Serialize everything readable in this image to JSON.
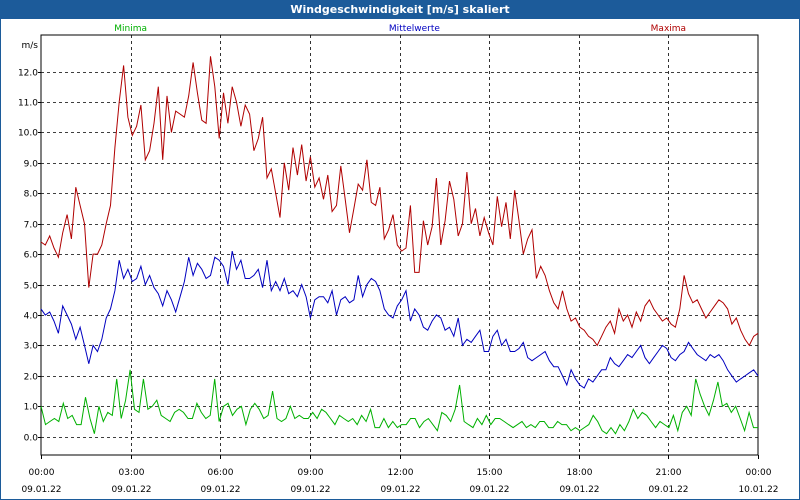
{
  "window": {
    "title": "Windgeschwindigkeit [m/s] skaliert"
  },
  "chart_data": {
    "type": "line",
    "title": "Windgeschwindigkeit [m/s] skaliert",
    "ylabel": "m/s",
    "ylim": [
      -0.6,
      13.2
    ],
    "xlim": [
      0,
      24
    ],
    "grid": true,
    "yticks": [
      "0.0",
      "1.0",
      "2.0",
      "3.0",
      "4.0",
      "5.0",
      "6.0",
      "7.0",
      "8.0",
      "9.0",
      "10.0",
      "11.0",
      "12.0"
    ],
    "xticks": [
      {
        "time": "00:00",
        "date": "09.01.22"
      },
      {
        "time": "03:00",
        "date": "09.01.22"
      },
      {
        "time": "06:00",
        "date": "09.01.22"
      },
      {
        "time": "09:00",
        "date": "09.01.22"
      },
      {
        "time": "12:00",
        "date": "09.01.22"
      },
      {
        "time": "15:00",
        "date": "09.01.22"
      },
      {
        "time": "18:00",
        "date": "09.01.22"
      },
      {
        "time": "21:00",
        "date": "09.01.22"
      },
      {
        "time": "00:00",
        "date": "10.01.22"
      }
    ],
    "x_unit": "hours since 09.01.22 00:00",
    "series": [
      {
        "name": "Minima",
        "color": "#00b000",
        "values": [
          1.0,
          0.4,
          0.5,
          0.6,
          0.5,
          1.1,
          0.6,
          0.7,
          0.4,
          0.4,
          1.3,
          0.6,
          0.1,
          1.0,
          0.5,
          0.8,
          0.7,
          1.9,
          0.6,
          1.2,
          2.2,
          0.9,
          0.8,
          1.9,
          0.9,
          1.0,
          1.2,
          0.7,
          0.6,
          0.5,
          0.8,
          0.9,
          0.8,
          0.6,
          0.6,
          1.1,
          0.8,
          0.6,
          0.7,
          1.9,
          0.5,
          1.0,
          1.1,
          0.7,
          0.9,
          1.0,
          0.4,
          0.9,
          1.1,
          0.9,
          0.6,
          0.7,
          1.5,
          0.6,
          0.5,
          0.6,
          1.0,
          0.6,
          0.7,
          0.6,
          0.6,
          0.8,
          0.6,
          0.9,
          0.8,
          0.6,
          0.4,
          0.7,
          0.6,
          0.5,
          0.6,
          0.4,
          0.7,
          0.5,
          0.9,
          0.3,
          0.3,
          0.6,
          0.3,
          0.5,
          0.3,
          0.4,
          0.4,
          0.6,
          0.6,
          0.3,
          0.5,
          0.6,
          0.4,
          0.2,
          0.8,
          0.7,
          0.5,
          0.9,
          1.7,
          0.5,
          0.4,
          0.3,
          0.6,
          0.4,
          0.7,
          0.4,
          0.6,
          0.6,
          0.5,
          0.4,
          0.3,
          0.4,
          0.5,
          0.3,
          0.4,
          0.3,
          0.5,
          0.5,
          0.3,
          0.3,
          0.5,
          0.4,
          0.4,
          0.2,
          0.3,
          0.2,
          0.3,
          0.4,
          0.7,
          0.5,
          0.2,
          0.1,
          0.3,
          0.1,
          0.4,
          0.2,
          0.5,
          0.9,
          0.6,
          0.8,
          0.7,
          0.5,
          0.3,
          0.5,
          0.4,
          0.3,
          0.7,
          0.2,
          0.8,
          1.0,
          0.7,
          1.9,
          1.4,
          1.0,
          0.7,
          1.2,
          1.8,
          1.0,
          1.1,
          0.8,
          1.0,
          0.6,
          0.2,
          0.8,
          0.3,
          0.3
        ]
      },
      {
        "name": "Mittelwerte",
        "color": "#0000c0",
        "values": [
          4.2,
          4.0,
          4.1,
          3.8,
          3.4,
          4.3,
          4.0,
          3.7,
          3.2,
          3.6,
          3.0,
          2.4,
          3.0,
          2.8,
          3.2,
          3.9,
          4.2,
          4.8,
          5.8,
          5.2,
          5.5,
          5.1,
          5.2,
          5.6,
          5.0,
          5.3,
          4.9,
          4.7,
          4.3,
          4.8,
          4.5,
          4.1,
          4.6,
          5.1,
          5.9,
          5.3,
          5.7,
          5.5,
          5.2,
          5.3,
          5.9,
          5.8,
          5.6,
          5.0,
          6.1,
          5.5,
          5.8,
          5.2,
          5.2,
          5.3,
          5.5,
          4.9,
          5.8,
          4.8,
          5.1,
          4.8,
          5.2,
          4.7,
          4.8,
          4.6,
          5.0,
          4.6,
          3.9,
          4.5,
          4.6,
          4.6,
          4.4,
          4.8,
          4.0,
          4.5,
          4.6,
          4.4,
          4.5,
          5.3,
          4.6,
          5.0,
          5.2,
          5.1,
          4.8,
          4.2,
          4.0,
          3.9,
          4.3,
          4.5,
          4.8,
          3.8,
          4.2,
          4.0,
          3.6,
          3.5,
          3.8,
          4.0,
          3.9,
          3.5,
          3.6,
          3.3,
          3.9,
          3.0,
          3.2,
          3.1,
          3.3,
          3.5,
          2.8,
          2.8,
          3.3,
          3.5,
          3.0,
          3.2,
          2.8,
          2.8,
          2.9,
          3.1,
          2.6,
          2.5,
          2.6,
          2.7,
          2.8,
          2.5,
          2.3,
          2.3,
          2.0,
          1.7,
          2.2,
          1.9,
          1.7,
          1.6,
          1.9,
          1.8,
          2.0,
          2.2,
          2.2,
          2.6,
          2.4,
          2.3,
          2.5,
          2.7,
          2.6,
          2.8,
          3.0,
          2.6,
          2.4,
          2.6,
          2.8,
          3.0,
          2.9,
          2.6,
          2.5,
          2.7,
          2.8,
          3.1,
          2.9,
          2.7,
          2.6,
          2.5,
          2.7,
          2.6,
          2.7,
          2.5,
          2.2,
          2.0,
          1.8,
          1.9,
          2.0,
          2.1,
          2.2,
          2.0
        ]
      },
      {
        "name": "Maxima",
        "color": "#b00000",
        "values": [
          6.4,
          6.3,
          6.6,
          6.2,
          5.9,
          6.7,
          7.3,
          6.5,
          8.2,
          7.6,
          7.0,
          4.9,
          6.0,
          6.0,
          6.3,
          7.0,
          7.6,
          9.5,
          11.0,
          12.2,
          10.5,
          9.9,
          10.2,
          10.9,
          9.1,
          9.4,
          10.3,
          11.5,
          9.1,
          11.2,
          10.0,
          10.7,
          10.6,
          10.5,
          11.2,
          12.3,
          11.3,
          10.4,
          10.3,
          12.5,
          11.5,
          9.8,
          11.3,
          10.3,
          11.5,
          11.0,
          10.2,
          10.9,
          10.6,
          9.4,
          9.8,
          10.5,
          8.5,
          8.8,
          8.0,
          7.2,
          9.0,
          8.1,
          9.5,
          8.6,
          9.6,
          8.4,
          9.2,
          8.2,
          8.5,
          7.8,
          8.6,
          7.4,
          7.6,
          8.9,
          7.8,
          6.7,
          7.5,
          8.3,
          8.1,
          9.1,
          7.7,
          7.6,
          8.2,
          6.5,
          6.8,
          7.3,
          6.3,
          6.1,
          6.2,
          7.6,
          5.4,
          5.4,
          7.1,
          6.3,
          6.9,
          8.5,
          6.3,
          7.1,
          8.4,
          7.8,
          6.6,
          7.0,
          8.7,
          7.0,
          7.5,
          6.6,
          7.2,
          6.7,
          6.3,
          7.9,
          6.9,
          7.7,
          6.5,
          8.1,
          7.1,
          6.0,
          6.5,
          6.8,
          5.2,
          5.6,
          5.3,
          4.8,
          4.4,
          4.2,
          4.8,
          4.2,
          3.8,
          3.9,
          3.6,
          3.5,
          3.3,
          3.2,
          3.0,
          3.3,
          3.6,
          3.8,
          3.4,
          4.2,
          3.8,
          4.0,
          3.6,
          4.1,
          3.8,
          4.3,
          4.5,
          4.2,
          4.0,
          3.8,
          3.9,
          3.7,
          3.6,
          4.2,
          5.3,
          4.7,
          4.4,
          4.5,
          4.2,
          3.9,
          4.1,
          4.3,
          4.5,
          4.4,
          4.2,
          3.7,
          3.9,
          3.5,
          3.2,
          3.0,
          3.3,
          3.4
        ]
      }
    ]
  }
}
